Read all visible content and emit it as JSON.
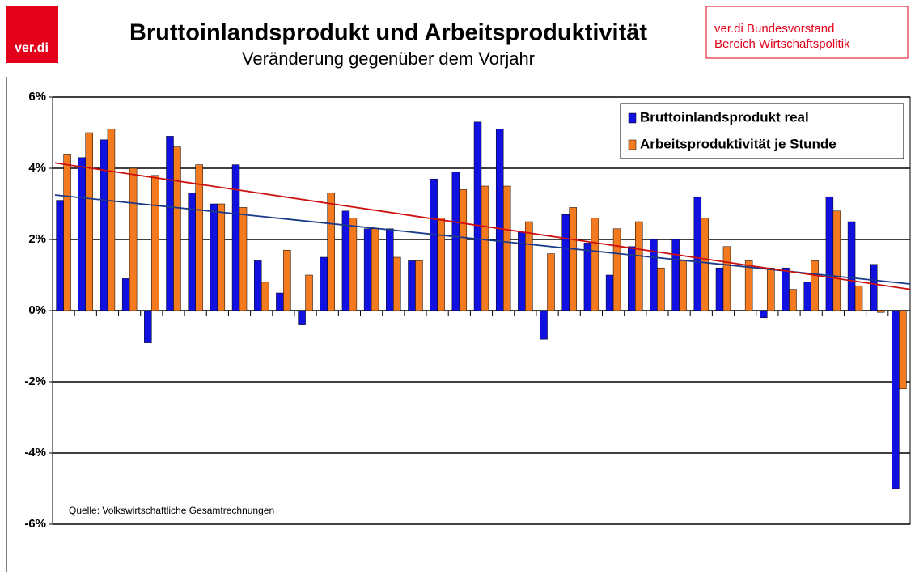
{
  "header": {
    "logo": "ver.di",
    "title": "Bruttoinlandsprodukt und Arbeitsproduktivität",
    "subtitle": "Veränderung gegenüber dem Vorjahr",
    "org_line1": "ver.di Bundesvorstand",
    "org_line2": "Bereich Wirtschaftspolitik"
  },
  "chart_data": {
    "type": "bar",
    "categories": [
      null,
      null,
      null,
      null,
      null,
      null,
      null,
      null,
      null,
      null,
      null,
      null,
      null,
      null,
      null,
      null,
      null,
      null,
      null,
      null,
      null,
      null,
      null,
      null,
      null,
      null,
      null,
      null,
      null,
      null,
      null,
      null,
      null,
      null,
      null,
      null,
      null,
      null,
      null
    ],
    "series": [
      {
        "name": "Bruttoinlandsprodukt real",
        "color": "#1010e0",
        "values": [
          3.1,
          4.3,
          4.8,
          0.9,
          -0.9,
          4.9,
          3.3,
          3.0,
          4.1,
          1.4,
          0.5,
          -0.4,
          1.5,
          2.8,
          2.3,
          2.3,
          1.4,
          3.7,
          3.9,
          5.3,
          5.1,
          2.2,
          -0.8,
          2.7,
          1.9,
          1.0,
          1.8,
          2.0,
          2.0,
          3.2,
          1.2,
          0.0,
          -0.2,
          1.2,
          0.8,
          3.2,
          2.5,
          1.3,
          -5.0
        ]
      },
      {
        "name": "Arbeitsproduktivität je Stunde",
        "color": "#f47a20",
        "values": [
          4.4,
          5.0,
          5.1,
          4.0,
          3.8,
          4.6,
          4.1,
          3.0,
          2.9,
          0.8,
          1.7,
          1.0,
          3.3,
          2.6,
          2.3,
          1.5,
          1.4,
          2.6,
          3.4,
          3.5,
          3.5,
          2.5,
          1.6,
          2.9,
          2.6,
          2.3,
          2.5,
          1.2,
          1.4,
          2.6,
          1.8,
          1.4,
          1.2,
          0.6,
          1.4,
          2.8,
          0.7,
          -0.05,
          -2.2
        ]
      }
    ],
    "trendlines": [
      {
        "color": "#1a3a8a",
        "start": 3.25,
        "end": 0.75
      },
      {
        "color": "#cc1010",
        "start": 4.15,
        "end": 0.6
      }
    ],
    "ylim": [
      -6,
      6
    ],
    "yticks": [
      {
        "value": -6,
        "label": "-6%"
      },
      {
        "value": -4,
        "label": "-4%"
      },
      {
        "value": -2,
        "label": "-2%"
      },
      {
        "value": 0,
        "label": "0%"
      },
      {
        "value": 2,
        "label": "2%"
      },
      {
        "value": 4,
        "label": "4%"
      },
      {
        "value": 6,
        "label": "6%"
      }
    ],
    "grid": true,
    "legend": "top-right",
    "source": "Quelle: Volkswirtschaftliche Gesamtrechnungen"
  }
}
